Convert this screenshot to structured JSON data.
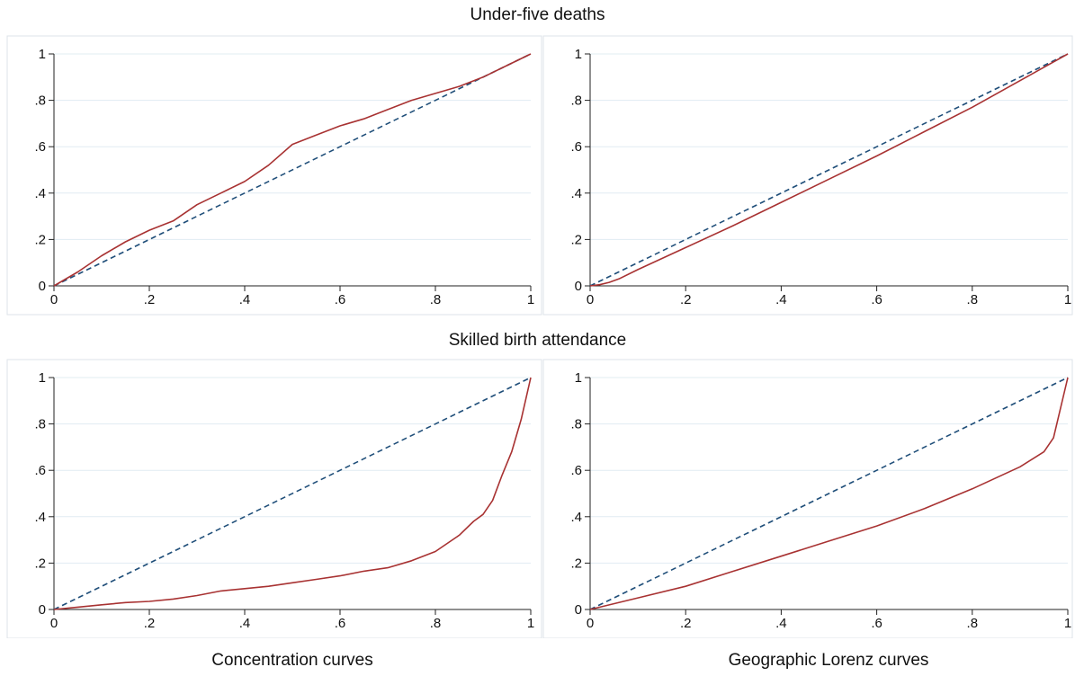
{
  "row_titles": [
    "Under-five deaths",
    "Skilled birth attendance"
  ],
  "column_titles": [
    "Concentration curves",
    "Geographic Lorenz curves"
  ],
  "colors": {
    "curve": "#a83232",
    "equality": "#1f4e79",
    "grid": "#e1ecf2",
    "frame": "#dde3e8"
  },
  "chart_data": [
    {
      "type": "line",
      "row": "Under-five deaths",
      "column": "Concentration curves",
      "xlim": [
        0,
        1
      ],
      "ylim": [
        0,
        1
      ],
      "grid": true,
      "xticks": [
        "0",
        ".2",
        ".4",
        ".6",
        ".8",
        "1"
      ],
      "yticks": [
        "0",
        ".2",
        ".4",
        ".6",
        ".8",
        "1"
      ],
      "series": [
        {
          "style": "dashed",
          "color": "#1f4e79",
          "x": [
            0,
            1
          ],
          "y": [
            0,
            1
          ]
        },
        {
          "style": "solid",
          "color": "#a83232",
          "x": [
            0,
            0.05,
            0.1,
            0.15,
            0.2,
            0.25,
            0.3,
            0.35,
            0.4,
            0.45,
            0.5,
            0.55,
            0.6,
            0.65,
            0.7,
            0.75,
            0.8,
            0.85,
            0.9,
            0.95,
            1
          ],
          "y": [
            0,
            0.06,
            0.13,
            0.19,
            0.24,
            0.28,
            0.35,
            0.4,
            0.45,
            0.52,
            0.61,
            0.65,
            0.69,
            0.72,
            0.76,
            0.8,
            0.83,
            0.86,
            0.9,
            0.95,
            1
          ]
        }
      ]
    },
    {
      "type": "line",
      "row": "Under-five deaths",
      "column": "Geographic Lorenz curves",
      "xlim": [
        0,
        1
      ],
      "ylim": [
        0,
        1
      ],
      "grid": true,
      "xticks": [
        "0",
        ".2",
        ".4",
        ".6",
        ".8",
        "1"
      ],
      "yticks": [
        "0",
        ".2",
        ".4",
        ".6",
        ".8",
        "1"
      ],
      "series": [
        {
          "style": "dashed",
          "color": "#1f4e79",
          "x": [
            0,
            1
          ],
          "y": [
            0,
            1
          ]
        },
        {
          "style": "solid",
          "color": "#a83232",
          "x": [
            0,
            0.02,
            0.04,
            0.06,
            0.1,
            0.2,
            0.3,
            0.4,
            0.5,
            0.6,
            0.7,
            0.8,
            0.9,
            1
          ],
          "y": [
            0,
            0.005,
            0.015,
            0.03,
            0.07,
            0.165,
            0.26,
            0.36,
            0.46,
            0.56,
            0.665,
            0.77,
            0.885,
            1
          ]
        }
      ]
    },
    {
      "type": "line",
      "row": "Skilled birth attendance",
      "column": "Concentration curves",
      "xlim": [
        0,
        1
      ],
      "ylim": [
        0,
        1
      ],
      "grid": true,
      "xticks": [
        "0",
        ".2",
        ".4",
        ".6",
        ".8",
        "1"
      ],
      "yticks": [
        "0",
        ".2",
        ".4",
        ".6",
        ".8",
        "1"
      ],
      "series": [
        {
          "style": "dashed",
          "color": "#1f4e79",
          "x": [
            0,
            1
          ],
          "y": [
            0,
            1
          ]
        },
        {
          "style": "solid",
          "color": "#a83232",
          "x": [
            0,
            0.05,
            0.1,
            0.15,
            0.2,
            0.25,
            0.3,
            0.35,
            0.4,
            0.45,
            0.5,
            0.55,
            0.6,
            0.65,
            0.7,
            0.75,
            0.8,
            0.85,
            0.88,
            0.9,
            0.92,
            0.94,
            0.96,
            0.98,
            1
          ],
          "y": [
            0,
            0.01,
            0.02,
            0.03,
            0.035,
            0.045,
            0.06,
            0.08,
            0.09,
            0.1,
            0.115,
            0.13,
            0.145,
            0.165,
            0.18,
            0.21,
            0.25,
            0.32,
            0.38,
            0.41,
            0.47,
            0.58,
            0.68,
            0.82,
            1
          ]
        }
      ]
    },
    {
      "type": "line",
      "row": "Skilled birth attendance",
      "column": "Geographic Lorenz curves",
      "xlim": [
        0,
        1
      ],
      "ylim": [
        0,
        1
      ],
      "grid": true,
      "xticks": [
        "0",
        ".2",
        ".4",
        ".6",
        ".8",
        "1"
      ],
      "yticks": [
        "0",
        ".2",
        ".4",
        ".6",
        ".8",
        "1"
      ],
      "series": [
        {
          "style": "dashed",
          "color": "#1f4e79",
          "x": [
            0,
            1
          ],
          "y": [
            0,
            1
          ]
        },
        {
          "style": "solid",
          "color": "#a83232",
          "x": [
            0,
            0.1,
            0.2,
            0.3,
            0.4,
            0.5,
            0.6,
            0.7,
            0.8,
            0.9,
            0.95,
            0.97,
            1
          ],
          "y": [
            0,
            0.05,
            0.1,
            0.165,
            0.23,
            0.295,
            0.36,
            0.435,
            0.52,
            0.615,
            0.68,
            0.74,
            1
          ]
        }
      ]
    }
  ]
}
